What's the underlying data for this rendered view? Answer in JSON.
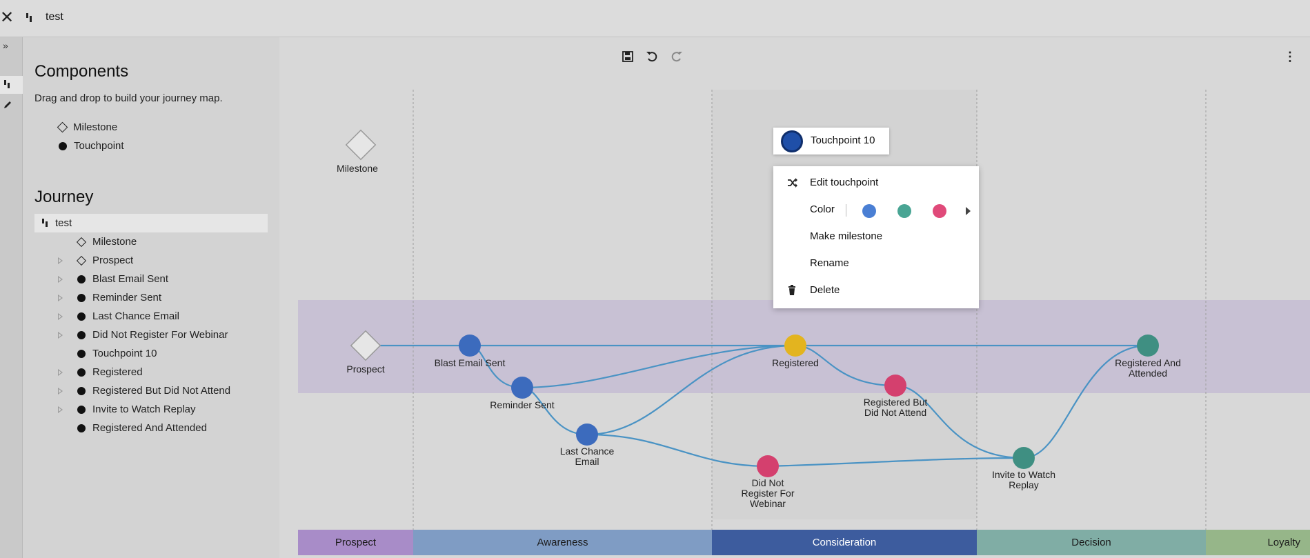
{
  "window": {
    "title": "test"
  },
  "panel": {
    "components_title": "Components",
    "components_desc": "Drag and drop to build your journey map.",
    "components": [
      {
        "label": "Milestone",
        "icon": "diamond-icon"
      },
      {
        "label": "Touchpoint",
        "icon": "dot-icon"
      }
    ],
    "journey_title": "Journey",
    "journey_root": "test",
    "tree": [
      {
        "label": "Milestone",
        "icon": "diamond",
        "expandable": false
      },
      {
        "label": "Prospect",
        "icon": "diamond",
        "expandable": true
      },
      {
        "label": "Blast Email Sent",
        "icon": "dot",
        "expandable": true
      },
      {
        "label": "Reminder Sent",
        "icon": "dot",
        "expandable": true
      },
      {
        "label": "Last Chance Email",
        "icon": "dot",
        "expandable": true
      },
      {
        "label": "Did Not Register For Webinar",
        "icon": "dot",
        "expandable": true
      },
      {
        "label": "Touchpoint 10",
        "icon": "dot",
        "expandable": false
      },
      {
        "label": "Registered",
        "icon": "dot",
        "expandable": true
      },
      {
        "label": "Registered But Did Not Attend",
        "icon": "dot",
        "expandable": true
      },
      {
        "label": "Invite to Watch Replay",
        "icon": "dot",
        "expandable": true
      },
      {
        "label": "Registered And Attended",
        "icon": "dot",
        "expandable": false
      }
    ]
  },
  "map": {
    "nodes": {
      "milestone": "Milestone",
      "prospect": "Prospect",
      "blast": "Blast Email Sent",
      "reminder": "Reminder Sent",
      "last_chance_1": "Last Chance",
      "last_chance_2": "Email",
      "registered": "Registered",
      "rbdna_1": "Registered But",
      "rbdna_2": "Did Not Attend",
      "dnr_1": "Did Not",
      "dnr_2": "Register For",
      "dnr_3": "Webinar",
      "invite_1": "Invite to Watch",
      "invite_2": "Replay",
      "rna_1": "Registered And",
      "rna_2": "Attended"
    },
    "stages": [
      {
        "label": "Prospect",
        "color": "#a88cc8"
      },
      {
        "label": "Awareness",
        "color": "#7f9cc4"
      },
      {
        "label": "Consideration",
        "color": "#3d5c9e"
      },
      {
        "label": "Decision",
        "color": "#80ada5"
      },
      {
        "label": "Loyalty",
        "color": "#96b689"
      }
    ],
    "colors": {
      "blue": "#3c6bbd",
      "teal": "#3f8f82",
      "pink": "#d4406e",
      "gold": "#e3b41f",
      "line": "#4a93c4"
    }
  },
  "popup": {
    "touchpoint_name": "Touchpoint 10",
    "edit": "Edit touchpoint",
    "color": "Color",
    "make_milestone": "Make milestone",
    "rename": "Rename",
    "delete": "Delete",
    "swatches": [
      "#4a7fd4",
      "#49a594",
      "#e04a7a"
    ]
  }
}
